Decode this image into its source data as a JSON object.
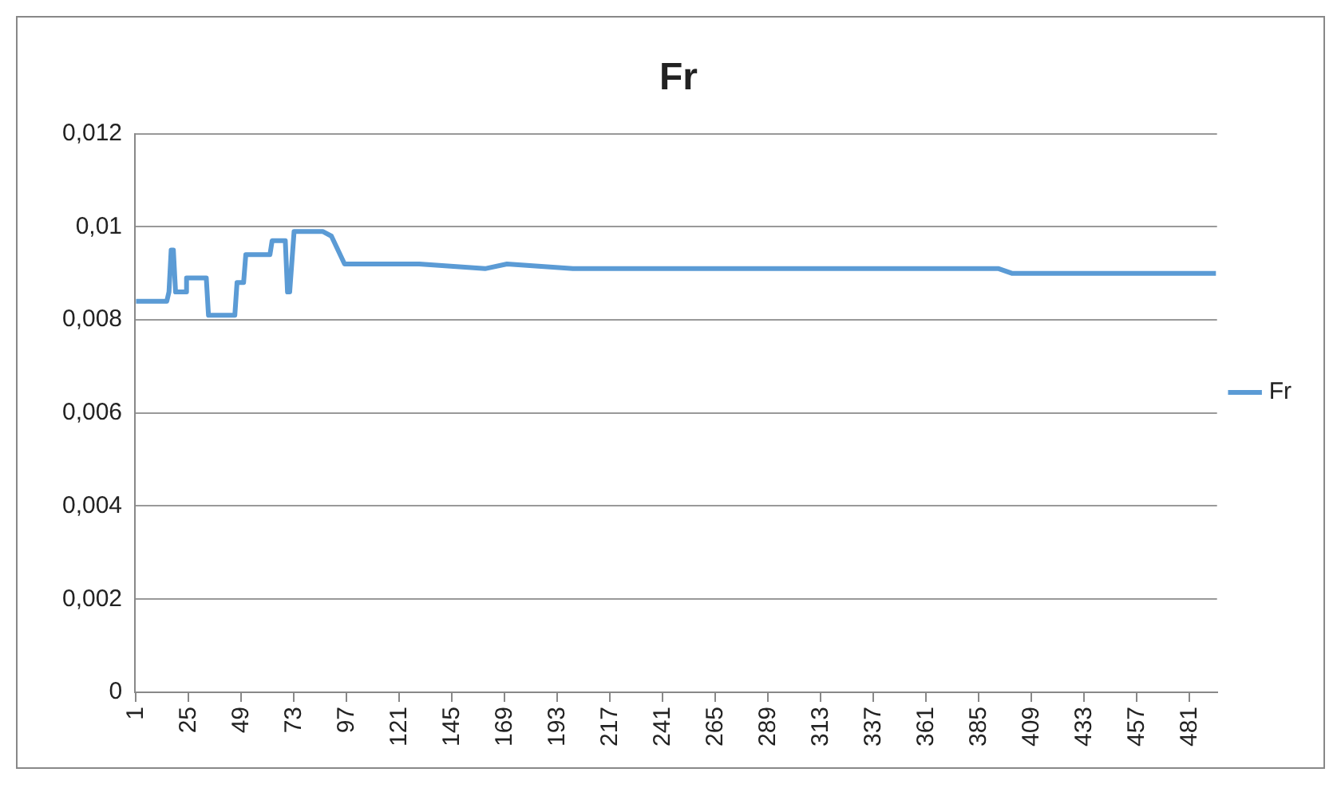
{
  "chart_data": {
    "type": "line",
    "title": "Fr",
    "x": [
      1,
      15,
      16,
      17,
      18,
      19,
      24,
      24,
      33,
      34,
      46,
      47,
      50,
      51,
      62,
      63,
      69,
      70,
      71,
      73,
      86,
      90,
      96,
      130,
      160,
      170,
      200,
      260,
      310,
      394,
      400,
      493
    ],
    "series": [
      {
        "name": "Fr",
        "color": "#5b9bd5",
        "values": [
          0.0084,
          0.0084,
          0.0086,
          0.0095,
          0.0095,
          0.0086,
          0.0086,
          0.0089,
          0.0089,
          0.0081,
          0.0081,
          0.0088,
          0.0088,
          0.0094,
          0.0094,
          0.0097,
          0.0097,
          0.0086,
          0.0086,
          0.0099,
          0.0099,
          0.0098,
          0.0092,
          0.0092,
          0.0091,
          0.0092,
          0.0091,
          0.0091,
          0.0091,
          0.0091,
          0.009,
          0.009
        ]
      }
    ],
    "xlim": [
      0.5,
      493.5
    ],
    "xticks": [
      1,
      25,
      49,
      73,
      97,
      121,
      145,
      169,
      193,
      217,
      241,
      265,
      289,
      313,
      337,
      361,
      385,
      409,
      433,
      457,
      481
    ],
    "ylim": [
      0,
      0.012
    ],
    "yticks": [
      {
        "value": 0,
        "label": "0"
      },
      {
        "value": 0.002,
        "label": "0,002"
      },
      {
        "value": 0.004,
        "label": "0,004"
      },
      {
        "value": 0.006,
        "label": "0,006"
      },
      {
        "value": 0.008,
        "label": "0,008"
      },
      {
        "value": 0.01,
        "label": "0,01"
      },
      {
        "value": 0.012,
        "label": "0,012"
      }
    ],
    "grid": "y",
    "legend": "right",
    "marker": "none",
    "line_style": "solid"
  }
}
